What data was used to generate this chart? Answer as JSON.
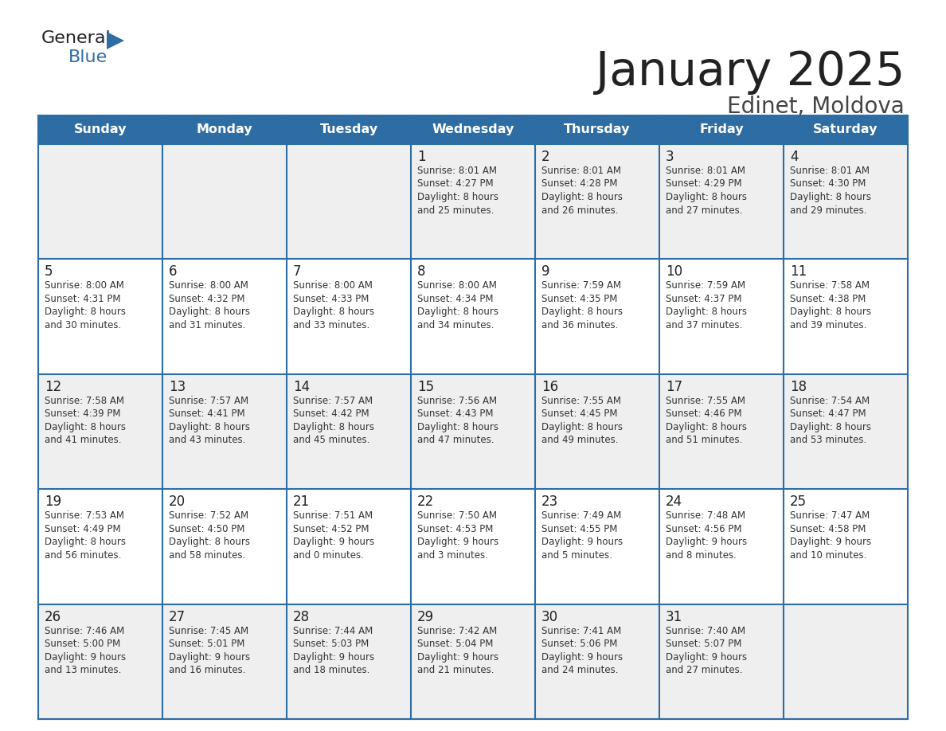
{
  "title": "January 2025",
  "subtitle": "Edinet, Moldova",
  "days_of_week": [
    "Sunday",
    "Monday",
    "Tuesday",
    "Wednesday",
    "Thursday",
    "Friday",
    "Saturday"
  ],
  "header_bg": "#2e6da4",
  "header_text_color": "#ffffff",
  "cell_bg_odd": "#efefef",
  "cell_bg_even": "#ffffff",
  "title_color": "#222222",
  "subtitle_color": "#444444",
  "day_number_color": "#222222",
  "cell_text_color": "#333333",
  "border_color": "#2e6da4",
  "calendar": [
    [
      {
        "day": null,
        "sunrise": null,
        "sunset": null,
        "daylight_h": null,
        "daylight_m": null
      },
      {
        "day": null,
        "sunrise": null,
        "sunset": null,
        "daylight_h": null,
        "daylight_m": null
      },
      {
        "day": null,
        "sunrise": null,
        "sunset": null,
        "daylight_h": null,
        "daylight_m": null
      },
      {
        "day": 1,
        "sunrise": "8:01 AM",
        "sunset": "4:27 PM",
        "daylight_h": "8 hours",
        "daylight_m": "and 25 minutes."
      },
      {
        "day": 2,
        "sunrise": "8:01 AM",
        "sunset": "4:28 PM",
        "daylight_h": "8 hours",
        "daylight_m": "and 26 minutes."
      },
      {
        "day": 3,
        "sunrise": "8:01 AM",
        "sunset": "4:29 PM",
        "daylight_h": "8 hours",
        "daylight_m": "and 27 minutes."
      },
      {
        "day": 4,
        "sunrise": "8:01 AM",
        "sunset": "4:30 PM",
        "daylight_h": "8 hours",
        "daylight_m": "and 29 minutes."
      }
    ],
    [
      {
        "day": 5,
        "sunrise": "8:00 AM",
        "sunset": "4:31 PM",
        "daylight_h": "8 hours",
        "daylight_m": "and 30 minutes."
      },
      {
        "day": 6,
        "sunrise": "8:00 AM",
        "sunset": "4:32 PM",
        "daylight_h": "8 hours",
        "daylight_m": "and 31 minutes."
      },
      {
        "day": 7,
        "sunrise": "8:00 AM",
        "sunset": "4:33 PM",
        "daylight_h": "8 hours",
        "daylight_m": "and 33 minutes."
      },
      {
        "day": 8,
        "sunrise": "8:00 AM",
        "sunset": "4:34 PM",
        "daylight_h": "8 hours",
        "daylight_m": "and 34 minutes."
      },
      {
        "day": 9,
        "sunrise": "7:59 AM",
        "sunset": "4:35 PM",
        "daylight_h": "8 hours",
        "daylight_m": "and 36 minutes."
      },
      {
        "day": 10,
        "sunrise": "7:59 AM",
        "sunset": "4:37 PM",
        "daylight_h": "8 hours",
        "daylight_m": "and 37 minutes."
      },
      {
        "day": 11,
        "sunrise": "7:58 AM",
        "sunset": "4:38 PM",
        "daylight_h": "8 hours",
        "daylight_m": "and 39 minutes."
      }
    ],
    [
      {
        "day": 12,
        "sunrise": "7:58 AM",
        "sunset": "4:39 PM",
        "daylight_h": "8 hours",
        "daylight_m": "and 41 minutes."
      },
      {
        "day": 13,
        "sunrise": "7:57 AM",
        "sunset": "4:41 PM",
        "daylight_h": "8 hours",
        "daylight_m": "and 43 minutes."
      },
      {
        "day": 14,
        "sunrise": "7:57 AM",
        "sunset": "4:42 PM",
        "daylight_h": "8 hours",
        "daylight_m": "and 45 minutes."
      },
      {
        "day": 15,
        "sunrise": "7:56 AM",
        "sunset": "4:43 PM",
        "daylight_h": "8 hours",
        "daylight_m": "and 47 minutes."
      },
      {
        "day": 16,
        "sunrise": "7:55 AM",
        "sunset": "4:45 PM",
        "daylight_h": "8 hours",
        "daylight_m": "and 49 minutes."
      },
      {
        "day": 17,
        "sunrise": "7:55 AM",
        "sunset": "4:46 PM",
        "daylight_h": "8 hours",
        "daylight_m": "and 51 minutes."
      },
      {
        "day": 18,
        "sunrise": "7:54 AM",
        "sunset": "4:47 PM",
        "daylight_h": "8 hours",
        "daylight_m": "and 53 minutes."
      }
    ],
    [
      {
        "day": 19,
        "sunrise": "7:53 AM",
        "sunset": "4:49 PM",
        "daylight_h": "8 hours",
        "daylight_m": "and 56 minutes."
      },
      {
        "day": 20,
        "sunrise": "7:52 AM",
        "sunset": "4:50 PM",
        "daylight_h": "8 hours",
        "daylight_m": "and 58 minutes."
      },
      {
        "day": 21,
        "sunrise": "7:51 AM",
        "sunset": "4:52 PM",
        "daylight_h": "9 hours",
        "daylight_m": "and 0 minutes."
      },
      {
        "day": 22,
        "sunrise": "7:50 AM",
        "sunset": "4:53 PM",
        "daylight_h": "9 hours",
        "daylight_m": "and 3 minutes."
      },
      {
        "day": 23,
        "sunrise": "7:49 AM",
        "sunset": "4:55 PM",
        "daylight_h": "9 hours",
        "daylight_m": "and 5 minutes."
      },
      {
        "day": 24,
        "sunrise": "7:48 AM",
        "sunset": "4:56 PM",
        "daylight_h": "9 hours",
        "daylight_m": "and 8 minutes."
      },
      {
        "day": 25,
        "sunrise": "7:47 AM",
        "sunset": "4:58 PM",
        "daylight_h": "9 hours",
        "daylight_m": "and 10 minutes."
      }
    ],
    [
      {
        "day": 26,
        "sunrise": "7:46 AM",
        "sunset": "5:00 PM",
        "daylight_h": "9 hours",
        "daylight_m": "and 13 minutes."
      },
      {
        "day": 27,
        "sunrise": "7:45 AM",
        "sunset": "5:01 PM",
        "daylight_h": "9 hours",
        "daylight_m": "and 16 minutes."
      },
      {
        "day": 28,
        "sunrise": "7:44 AM",
        "sunset": "5:03 PM",
        "daylight_h": "9 hours",
        "daylight_m": "and 18 minutes."
      },
      {
        "day": 29,
        "sunrise": "7:42 AM",
        "sunset": "5:04 PM",
        "daylight_h": "9 hours",
        "daylight_m": "and 21 minutes."
      },
      {
        "day": 30,
        "sunrise": "7:41 AM",
        "sunset": "5:06 PM",
        "daylight_h": "9 hours",
        "daylight_m": "and 24 minutes."
      },
      {
        "day": 31,
        "sunrise": "7:40 AM",
        "sunset": "5:07 PM",
        "daylight_h": "9 hours",
        "daylight_m": "and 27 minutes."
      },
      {
        "day": null,
        "sunrise": null,
        "sunset": null,
        "daylight_h": null,
        "daylight_m": null
      }
    ]
  ]
}
